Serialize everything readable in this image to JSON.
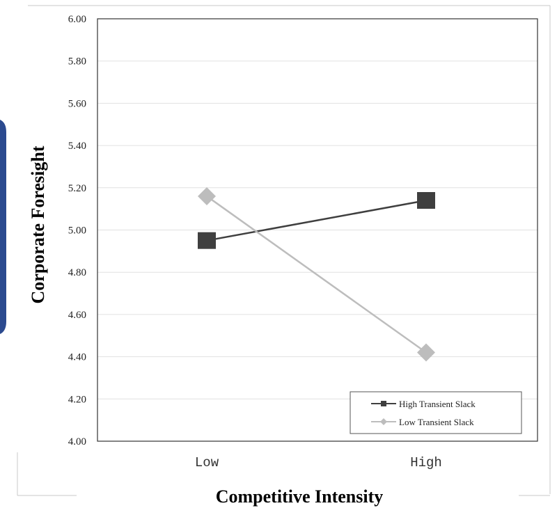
{
  "chart_data": {
    "type": "line",
    "categories": [
      "Low",
      "High"
    ],
    "xlabel": "Competitive Intensity",
    "ylabel": "Corporate Foresight",
    "ylim": [
      4.0,
      6.0
    ],
    "yticks": [
      "4.00",
      "4.20",
      "4.40",
      "4.60",
      "4.80",
      "5.00",
      "5.20",
      "5.40",
      "5.60",
      "5.80",
      "6.00"
    ],
    "grid": true,
    "legend_position": "bottom-right",
    "series": [
      {
        "name": "High Transient Slack",
        "values": [
          4.95,
          5.14
        ],
        "color": "#3f3f3f",
        "marker": "square"
      },
      {
        "name": "Low Transient Slack",
        "values": [
          5.16,
          4.42
        ],
        "color": "#bdbdbd",
        "marker": "diamond"
      }
    ]
  }
}
